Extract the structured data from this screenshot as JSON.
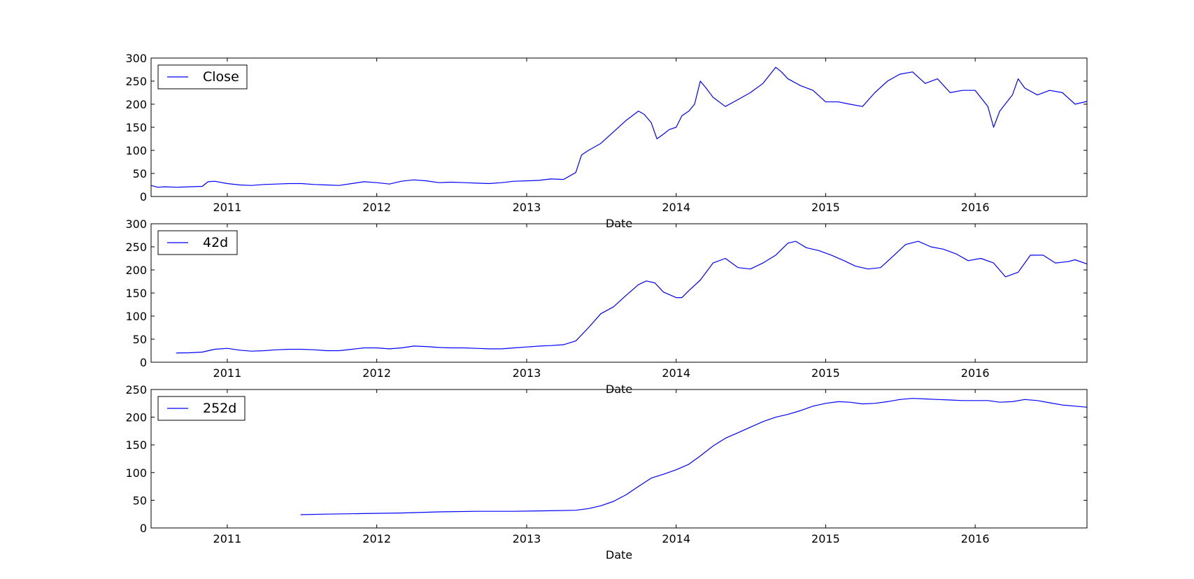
{
  "chart_data": [
    {
      "type": "line",
      "xlabel": "Date",
      "ylabel": "",
      "xlim": [
        "2010-06-29",
        "2016-09-30"
      ],
      "ylim": [
        0,
        300
      ],
      "yticks": [
        0,
        50,
        100,
        150,
        200,
        250,
        300
      ],
      "xticks": [
        "2011",
        "2012",
        "2013",
        "2014",
        "2015",
        "2016"
      ],
      "legend_location": "top-left",
      "grid": false,
      "series": [
        {
          "name": "Close",
          "color": "#0000ff",
          "points": [
            [
              "2010-06-29",
              24
            ],
            [
              "2010-07-15",
              20
            ],
            [
              "2010-08-01",
              21
            ],
            [
              "2010-09-01",
              20
            ],
            [
              "2010-10-01",
              21
            ],
            [
              "2010-11-01",
              22
            ],
            [
              "2010-11-15",
              32
            ],
            [
              "2010-12-01",
              33
            ],
            [
              "2011-01-01",
              28
            ],
            [
              "2011-02-01",
              25
            ],
            [
              "2011-03-01",
              24
            ],
            [
              "2011-04-01",
              26
            ],
            [
              "2011-05-01",
              27
            ],
            [
              "2011-06-01",
              28
            ],
            [
              "2011-07-01",
              28
            ],
            [
              "2011-08-01",
              26
            ],
            [
              "2011-09-01",
              25
            ],
            [
              "2011-10-01",
              24
            ],
            [
              "2011-11-01",
              28
            ],
            [
              "2011-12-01",
              32
            ],
            [
              "2012-01-01",
              30
            ],
            [
              "2012-02-01",
              27
            ],
            [
              "2012-03-01",
              33
            ],
            [
              "2012-04-01",
              36
            ],
            [
              "2012-05-01",
              34
            ],
            [
              "2012-06-01",
              30
            ],
            [
              "2012-07-01",
              31
            ],
            [
              "2012-08-01",
              30
            ],
            [
              "2012-09-01",
              29
            ],
            [
              "2012-10-01",
              28
            ],
            [
              "2012-11-01",
              30
            ],
            [
              "2012-12-01",
              33
            ],
            [
              "2013-01-01",
              34
            ],
            [
              "2013-02-01",
              35
            ],
            [
              "2013-03-01",
              38
            ],
            [
              "2013-04-01",
              37
            ],
            [
              "2013-05-01",
              52
            ],
            [
              "2013-05-15",
              90
            ],
            [
              "2013-06-01",
              100
            ],
            [
              "2013-07-01",
              115
            ],
            [
              "2013-08-01",
              140
            ],
            [
              "2013-09-01",
              165
            ],
            [
              "2013-10-01",
              185
            ],
            [
              "2013-10-15",
              178
            ],
            [
              "2013-11-01",
              160
            ],
            [
              "2013-11-15",
              125
            ],
            [
              "2013-12-01",
              135
            ],
            [
              "2013-12-15",
              145
            ],
            [
              "2014-01-01",
              150
            ],
            [
              "2014-01-15",
              175
            ],
            [
              "2014-02-01",
              185
            ],
            [
              "2014-02-15",
              200
            ],
            [
              "2014-03-01",
              250
            ],
            [
              "2014-03-15",
              235
            ],
            [
              "2014-04-01",
              215
            ],
            [
              "2014-05-01",
              195
            ],
            [
              "2014-06-01",
              210
            ],
            [
              "2014-07-01",
              225
            ],
            [
              "2014-08-01",
              245
            ],
            [
              "2014-09-01",
              280
            ],
            [
              "2014-09-15",
              270
            ],
            [
              "2014-10-01",
              255
            ],
            [
              "2014-11-01",
              240
            ],
            [
              "2014-12-01",
              230
            ],
            [
              "2015-01-01",
              205
            ],
            [
              "2015-02-01",
              205
            ],
            [
              "2015-03-01",
              200
            ],
            [
              "2015-04-01",
              195
            ],
            [
              "2015-05-01",
              225
            ],
            [
              "2015-06-01",
              250
            ],
            [
              "2015-07-01",
              265
            ],
            [
              "2015-08-01",
              270
            ],
            [
              "2015-09-01",
              245
            ],
            [
              "2015-10-01",
              255
            ],
            [
              "2015-11-01",
              225
            ],
            [
              "2015-12-01",
              230
            ],
            [
              "2016-01-01",
              230
            ],
            [
              "2016-02-01",
              195
            ],
            [
              "2016-02-15",
              150
            ],
            [
              "2016-03-01",
              185
            ],
            [
              "2016-04-01",
              220
            ],
            [
              "2016-04-15",
              255
            ],
            [
              "2016-05-01",
              235
            ],
            [
              "2016-06-01",
              220
            ],
            [
              "2016-07-01",
              230
            ],
            [
              "2016-08-01",
              225
            ],
            [
              "2016-09-01",
              200
            ],
            [
              "2016-09-30",
              206
            ]
          ]
        }
      ]
    },
    {
      "type": "line",
      "xlabel": "Date",
      "ylabel": "",
      "xlim": [
        "2010-06-29",
        "2016-09-30"
      ],
      "ylim": [
        0,
        300
      ],
      "yticks": [
        0,
        50,
        100,
        150,
        200,
        250,
        300
      ],
      "xticks": [
        "2011",
        "2012",
        "2013",
        "2014",
        "2015",
        "2016"
      ],
      "legend_location": "top-left",
      "grid": false,
      "series": [
        {
          "name": "42d",
          "color": "#0000ff",
          "points": [
            [
              "2010-08-29",
              20
            ],
            [
              "2010-10-01",
              20.5
            ],
            [
              "2010-11-01",
              22
            ],
            [
              "2010-12-01",
              28
            ],
            [
              "2011-01-01",
              30
            ],
            [
              "2011-02-01",
              26
            ],
            [
              "2011-03-01",
              24
            ],
            [
              "2011-04-01",
              25
            ],
            [
              "2011-05-01",
              27
            ],
            [
              "2011-06-01",
              28
            ],
            [
              "2011-07-01",
              28
            ],
            [
              "2011-08-01",
              27
            ],
            [
              "2011-09-01",
              25
            ],
            [
              "2011-10-01",
              25
            ],
            [
              "2011-11-01",
              28
            ],
            [
              "2011-12-01",
              31
            ],
            [
              "2012-01-01",
              31
            ],
            [
              "2012-02-01",
              29
            ],
            [
              "2012-03-01",
              31
            ],
            [
              "2012-04-01",
              35
            ],
            [
              "2012-05-01",
              34
            ],
            [
              "2012-06-01",
              32
            ],
            [
              "2012-07-01",
              31
            ],
            [
              "2012-08-01",
              31
            ],
            [
              "2012-09-01",
              30
            ],
            [
              "2012-10-01",
              29
            ],
            [
              "2012-11-01",
              29
            ],
            [
              "2012-12-01",
              31
            ],
            [
              "2013-01-01",
              33
            ],
            [
              "2013-02-01",
              35
            ],
            [
              "2013-03-01",
              36
            ],
            [
              "2013-04-01",
              38
            ],
            [
              "2013-05-01",
              46
            ],
            [
              "2013-06-01",
              75
            ],
            [
              "2013-07-01",
              105
            ],
            [
              "2013-08-01",
              120
            ],
            [
              "2013-09-01",
              145
            ],
            [
              "2013-10-01",
              168
            ],
            [
              "2013-10-20",
              176
            ],
            [
              "2013-11-10",
              172
            ],
            [
              "2013-12-01",
              152
            ],
            [
              "2014-01-01",
              140
            ],
            [
              "2014-01-15",
              140
            ],
            [
              "2014-02-01",
              155
            ],
            [
              "2014-03-01",
              178
            ],
            [
              "2014-04-01",
              215
            ],
            [
              "2014-05-01",
              225
            ],
            [
              "2014-06-01",
              205
            ],
            [
              "2014-07-01",
              202
            ],
            [
              "2014-08-01",
              215
            ],
            [
              "2014-09-01",
              232
            ],
            [
              "2014-10-01",
              258
            ],
            [
              "2014-10-20",
              262
            ],
            [
              "2014-11-15",
              248
            ],
            [
              "2014-12-15",
              242
            ],
            [
              "2015-01-15",
              232
            ],
            [
              "2015-02-15",
              220
            ],
            [
              "2015-03-15",
              208
            ],
            [
              "2015-04-15",
              202
            ],
            [
              "2015-05-15",
              205
            ],
            [
              "2015-06-15",
              230
            ],
            [
              "2015-07-15",
              255
            ],
            [
              "2015-08-15",
              262
            ],
            [
              "2015-09-15",
              250
            ],
            [
              "2015-10-15",
              245
            ],
            [
              "2015-11-15",
              235
            ],
            [
              "2015-12-15",
              220
            ],
            [
              "2016-01-15",
              225
            ],
            [
              "2016-02-15",
              215
            ],
            [
              "2016-03-15",
              185
            ],
            [
              "2016-04-15",
              195
            ],
            [
              "2016-05-15",
              232
            ],
            [
              "2016-06-15",
              232
            ],
            [
              "2016-07-15",
              215
            ],
            [
              "2016-08-15",
              218
            ],
            [
              "2016-09-01",
              222
            ],
            [
              "2016-09-30",
              213
            ]
          ]
        }
      ]
    },
    {
      "type": "line",
      "xlabel": "Date",
      "ylabel": "",
      "xlim": [
        "2010-06-29",
        "2016-09-30"
      ],
      "ylim": [
        0,
        250
      ],
      "yticks": [
        0,
        50,
        100,
        150,
        200,
        250
      ],
      "xticks": [
        "2011",
        "2012",
        "2013",
        "2014",
        "2015",
        "2016"
      ],
      "legend_location": "top-left",
      "grid": false,
      "series": [
        {
          "name": "252d",
          "color": "#0000ff",
          "points": [
            [
              "2011-06-29",
              24
            ],
            [
              "2011-09-01",
              25
            ],
            [
              "2011-12-01",
              26
            ],
            [
              "2012-03-01",
              27
            ],
            [
              "2012-06-01",
              29
            ],
            [
              "2012-09-01",
              30
            ],
            [
              "2012-12-01",
              30
            ],
            [
              "2013-03-01",
              31
            ],
            [
              "2013-05-01",
              32
            ],
            [
              "2013-06-01",
              35
            ],
            [
              "2013-07-01",
              40
            ],
            [
              "2013-08-01",
              48
            ],
            [
              "2013-09-01",
              60
            ],
            [
              "2013-10-01",
              75
            ],
            [
              "2013-11-01",
              90
            ],
            [
              "2013-12-01",
              97
            ],
            [
              "2014-01-01",
              105
            ],
            [
              "2014-02-01",
              115
            ],
            [
              "2014-03-01",
              130
            ],
            [
              "2014-04-01",
              148
            ],
            [
              "2014-05-01",
              162
            ],
            [
              "2014-06-01",
              172
            ],
            [
              "2014-07-01",
              182
            ],
            [
              "2014-08-01",
              192
            ],
            [
              "2014-09-01",
              200
            ],
            [
              "2014-10-01",
              205
            ],
            [
              "2014-11-01",
              212
            ],
            [
              "2014-12-01",
              220
            ],
            [
              "2015-01-01",
              225
            ],
            [
              "2015-02-01",
              228
            ],
            [
              "2015-03-01",
              227
            ],
            [
              "2015-04-01",
              224
            ],
            [
              "2015-05-01",
              225
            ],
            [
              "2015-06-01",
              228
            ],
            [
              "2015-07-01",
              232
            ],
            [
              "2015-08-01",
              234
            ],
            [
              "2015-09-01",
              233
            ],
            [
              "2015-10-01",
              232
            ],
            [
              "2015-11-01",
              231
            ],
            [
              "2015-12-01",
              230
            ],
            [
              "2016-01-01",
              230
            ],
            [
              "2016-02-01",
              230
            ],
            [
              "2016-03-01",
              227
            ],
            [
              "2016-04-01",
              228
            ],
            [
              "2016-05-01",
              232
            ],
            [
              "2016-06-01",
              230
            ],
            [
              "2016-07-01",
              226
            ],
            [
              "2016-08-01",
              222
            ],
            [
              "2016-09-01",
              220
            ],
            [
              "2016-09-30",
              218
            ]
          ]
        }
      ]
    }
  ]
}
